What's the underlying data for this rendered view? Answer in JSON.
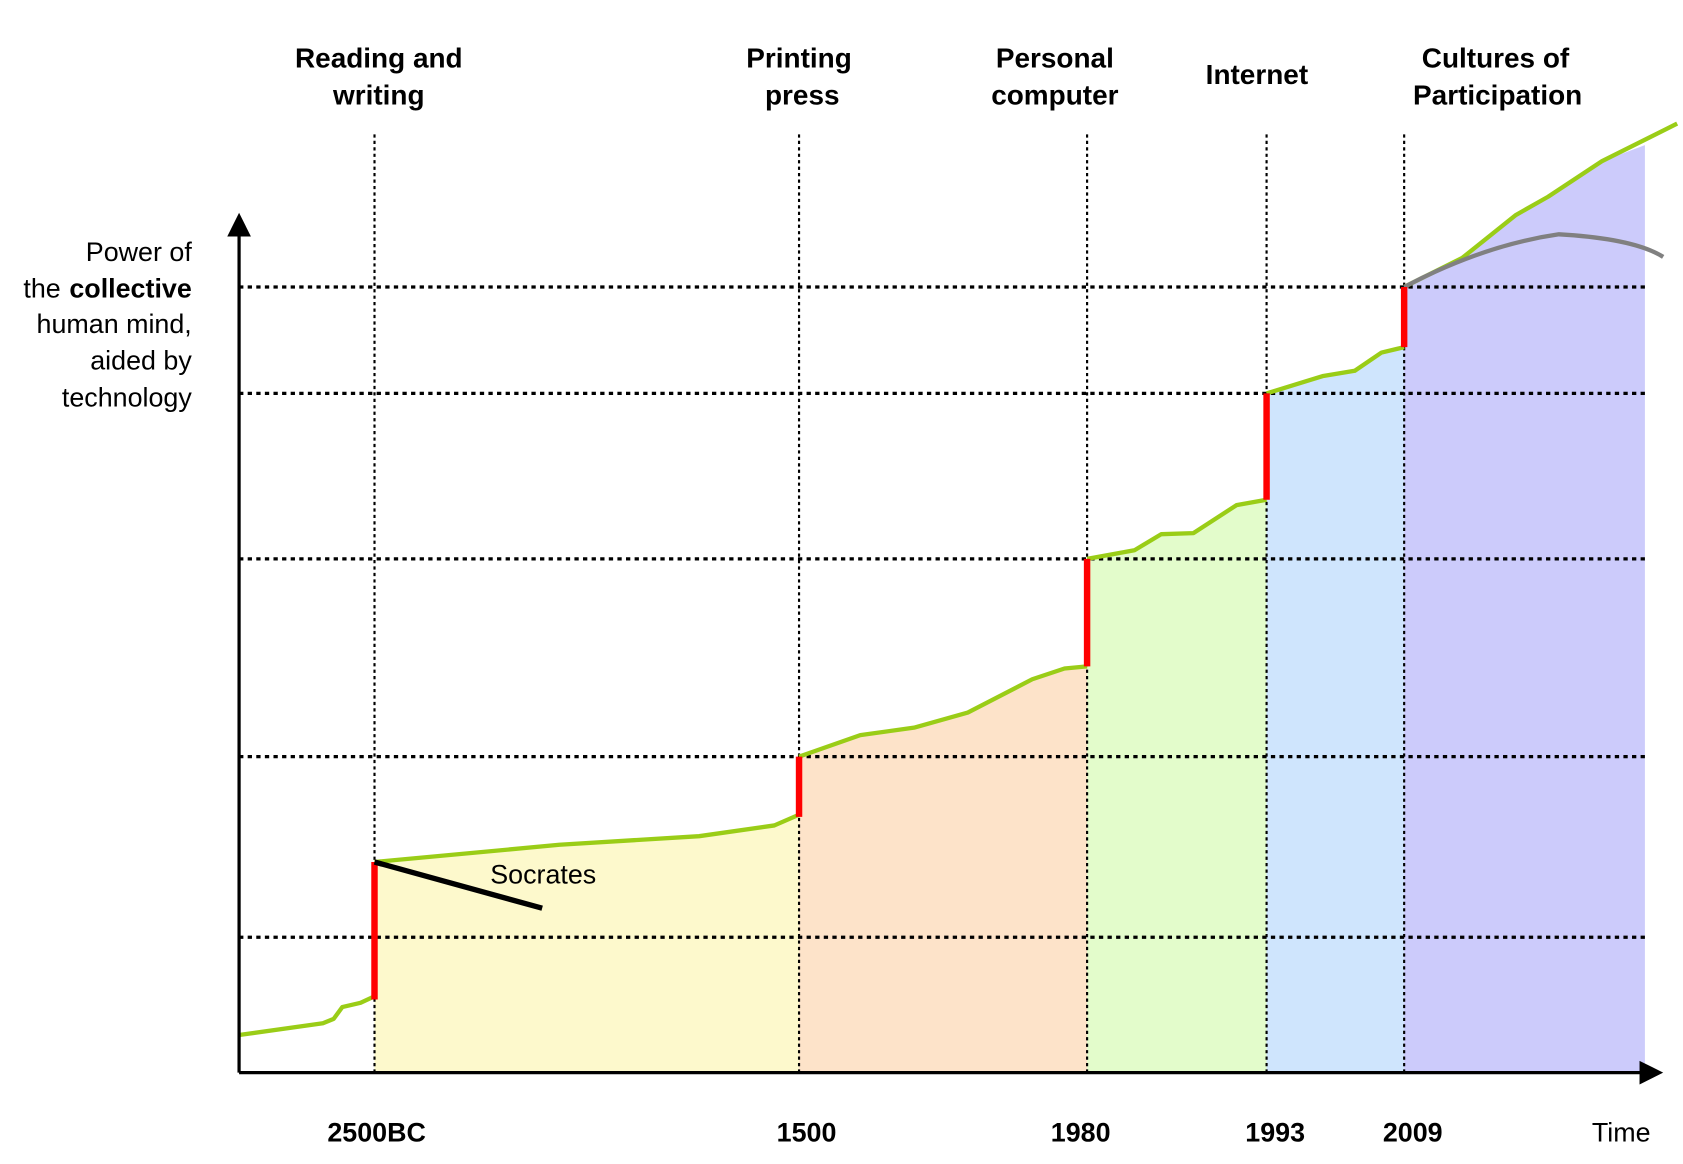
{
  "eras": [
    {
      "label_lines": [
        "Reading and",
        "writing"
      ]
    },
    {
      "label_lines": [
        "Printing",
        "press"
      ]
    },
    {
      "label_lines": [
        "Personal",
        "computer"
      ]
    },
    {
      "label_lines": [
        "Internet"
      ]
    },
    {
      "label_lines": [
        "Cultures of",
        "Participation"
      ]
    }
  ],
  "dates": [
    "2500BC",
    "1500",
    "1980",
    "1993",
    "2009"
  ],
  "x_axis_label": "Time",
  "y_axis_label": {
    "line1": "Power of",
    "line2_prefix": "the",
    "line2_bold": "collective",
    "line3": "human mind,",
    "line4": "aided by",
    "line5": "technology"
  },
  "annotation": "Socrates"
}
